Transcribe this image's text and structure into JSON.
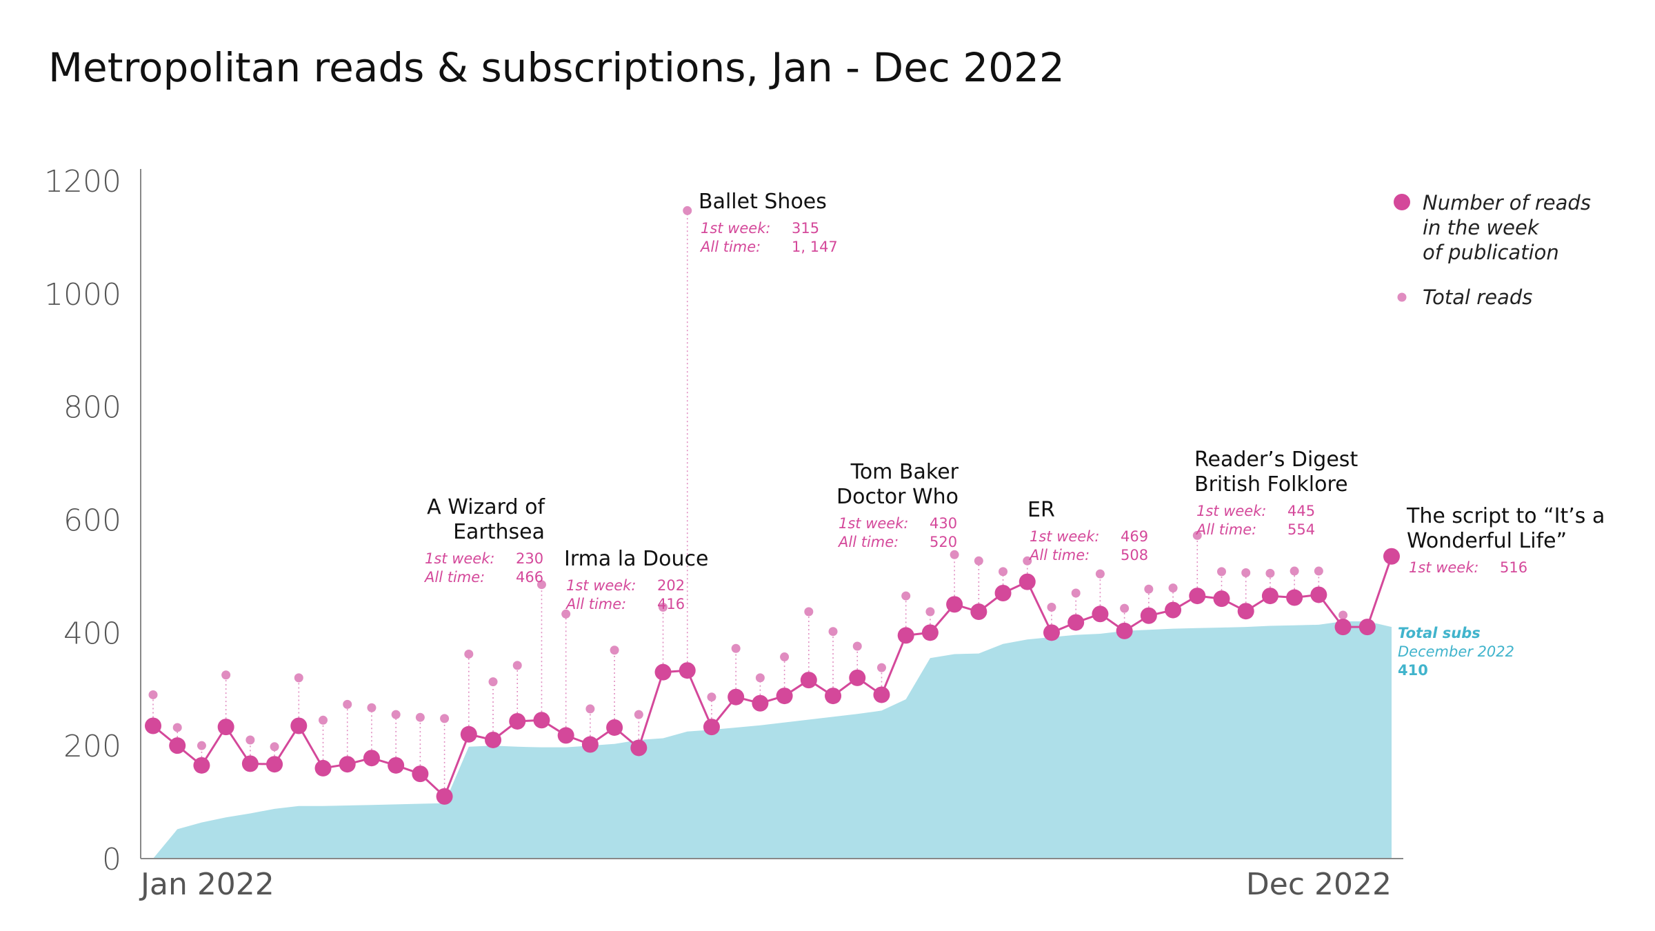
{
  "chart_data": {
    "type": "line",
    "title": "Metropolitan reads & subscriptions, Jan - Dec 2022",
    "x_tick_labels": [
      "Jan 2022",
      "Dec 2022"
    ],
    "y_ticks": [
      0,
      200,
      400,
      600,
      800,
      1000,
      1200
    ],
    "ylim": [
      0,
      1200
    ],
    "grid": false,
    "legend": {
      "position": "top-right",
      "weekly_label_lines": [
        "Number of reads",
        "in the week",
        "of publication"
      ],
      "total_label": "Total reads"
    },
    "colors": {
      "weekly": "#d4489a",
      "total": "#e08cc0",
      "subs_fill": "#aedfe9",
      "subs_text": "#41b4cc",
      "axis": "#888888"
    },
    "series": [
      {
        "name": "Number of reads in the week of publication",
        "values": [
          235,
          200,
          165,
          233,
          168,
          167,
          235,
          160,
          167,
          178,
          165,
          150,
          110,
          220,
          210,
          243,
          245,
          218,
          202,
          232,
          196,
          330,
          333,
          233,
          286,
          275,
          288,
          316,
          288,
          320,
          290,
          395,
          400,
          450,
          437,
          470,
          490,
          400,
          418,
          433,
          403,
          430,
          440,
          465,
          460,
          438,
          465,
          462,
          467,
          410,
          410,
          535
        ]
      },
      {
        "name": "Total reads",
        "values": [
          290,
          232,
          200,
          325,
          210,
          198,
          320,
          245,
          273,
          267,
          255,
          250,
          248,
          362,
          313,
          342,
          485,
          433,
          265,
          369,
          255,
          445,
          1147,
          286,
          372,
          320,
          357,
          437,
          402,
          376,
          338,
          465,
          437,
          538,
          527,
          508,
          527,
          445,
          470,
          504,
          443,
          477,
          479,
          572,
          508,
          506,
          505,
          509,
          509,
          431,
          null,
          null
        ]
      },
      {
        "name": "Total subs",
        "values": [
          0,
          52,
          64,
          73,
          80,
          88,
          93,
          93,
          94,
          95,
          96,
          97,
          98,
          198,
          200,
          198,
          197,
          197,
          200,
          203,
          210,
          213,
          225,
          228,
          232,
          236,
          241,
          246,
          251,
          256,
          262,
          282,
          355,
          362,
          363,
          380,
          388,
          392,
          396,
          398,
          403,
          405,
          407,
          408,
          409,
          410,
          412,
          413,
          414,
          420,
          420,
          410
        ]
      }
    ],
    "annotations": [
      {
        "title_lines": [
          "A Wizard of",
          "Earthsea"
        ],
        "week_label": "1st week:",
        "week_value": "230",
        "all_label": "All time:",
        "all_value": "466"
      },
      {
        "title_lines": [
          "Irma la Douce"
        ],
        "week_label": "1st week:",
        "week_value": "202",
        "all_label": "All time:",
        "all_value": "416"
      },
      {
        "title_lines": [
          "Ballet Shoes"
        ],
        "week_label": "1st week:",
        "week_value": "315",
        "all_label": "All time:",
        "all_value": "1, 147"
      },
      {
        "title_lines": [
          "Tom Baker",
          "Doctor Who"
        ],
        "week_label": "1st week:",
        "week_value": "430",
        "all_label": "All time:",
        "all_value": "520"
      },
      {
        "title_lines": [
          "ER"
        ],
        "week_label": "1st week:",
        "week_value": "469",
        "all_label": "All time:",
        "all_value": "508"
      },
      {
        "title_lines": [
          "Reader’s Digest",
          "British Folklore"
        ],
        "week_label": "1st week:",
        "week_value": "445",
        "all_label": "All time:",
        "all_value": "554"
      },
      {
        "title_lines": [
          "The script to “It’s a",
          "Wonderful Life”"
        ],
        "week_label": "1st week:",
        "week_value": "516",
        "all_label": "",
        "all_value": ""
      }
    ],
    "subs_annotation": {
      "label": "Total subs",
      "period": "December 2022",
      "value": "410"
    }
  }
}
